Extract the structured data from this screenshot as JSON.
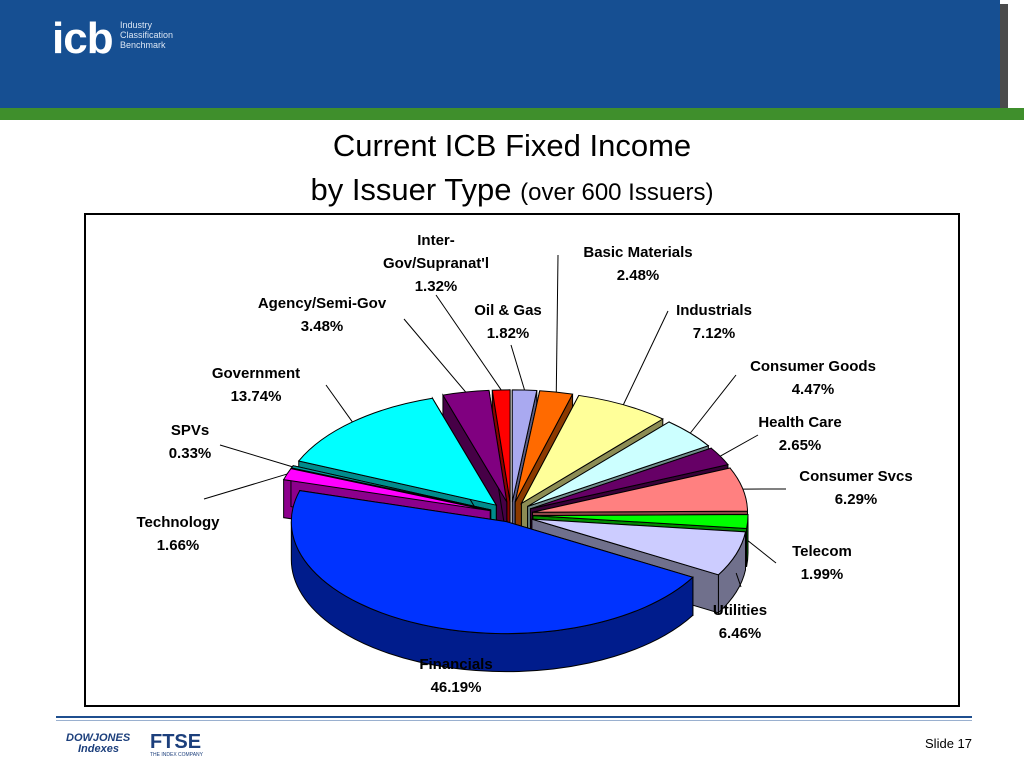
{
  "header": {
    "logo_text": "icb",
    "logo_line1": "Industry",
    "logo_line2": "Classification",
    "logo_line3": "Benchmark"
  },
  "title_line1": "Current ICB Fixed Income",
  "title_line2_main": "by Issuer Type",
  "title_line2_paren": "(over 600 Issuers)",
  "colors": {
    "header_blue": "#164f92",
    "header_green": "#3f8f2c"
  },
  "chart_data": {
    "type": "pie",
    "style": "3d-exploded",
    "title": "",
    "slices": [
      {
        "label": "Oil & Gas",
        "value": 1.82,
        "value_text": "1.82%",
        "color": "#a9a9f0"
      },
      {
        "label": "Basic Materials",
        "value": 2.48,
        "value_text": "2.48%",
        "color": "#ff6a00"
      },
      {
        "label": "Industrials",
        "value": 7.12,
        "value_text": "7.12%",
        "color": "#ffff99"
      },
      {
        "label": "Consumer Goods",
        "value": 4.47,
        "value_text": "4.47%",
        "color": "#ccffff"
      },
      {
        "label": "Health Care",
        "value": 2.65,
        "value_text": "2.65%",
        "color": "#660066"
      },
      {
        "label": "Consumer Svcs",
        "value": 6.29,
        "value_text": "6.29%",
        "color": "#ff8080"
      },
      {
        "label": "Telecom",
        "value": 1.99,
        "value_text": "1.99%",
        "color": "#00ff00"
      },
      {
        "label": "Utilities",
        "value": 6.46,
        "value_text": "6.46%",
        "color": "#ccccff"
      },
      {
        "label": "Financials",
        "value": 46.19,
        "value_text": "46.19%",
        "color": "#0033ff"
      },
      {
        "label": "Technology",
        "value": 1.66,
        "value_text": "1.66%",
        "color": "#ff00ff"
      },
      {
        "label": "SPVs",
        "value": 0.33,
        "value_text": "0.33%",
        "color": "#00a0a0"
      },
      {
        "label": "Government",
        "value": 13.74,
        "value_text": "13.74%",
        "color": "#00ffff"
      },
      {
        "label": "Agency/Semi-Gov",
        "value": 3.48,
        "value_text": "3.48%",
        "color": "#800080"
      },
      {
        "label": "Inter-Gov/Supranat'l",
        "value": 1.32,
        "value_text": "1.32%",
        "color": "#ff0000"
      }
    ]
  },
  "footer": {
    "dowjones_line1": "DOWJONES",
    "dowjones_line2": "Indexes",
    "ftse": "FTSE",
    "ftse_sub": "THE INDEX COMPANY",
    "slide": "Slide 17"
  }
}
